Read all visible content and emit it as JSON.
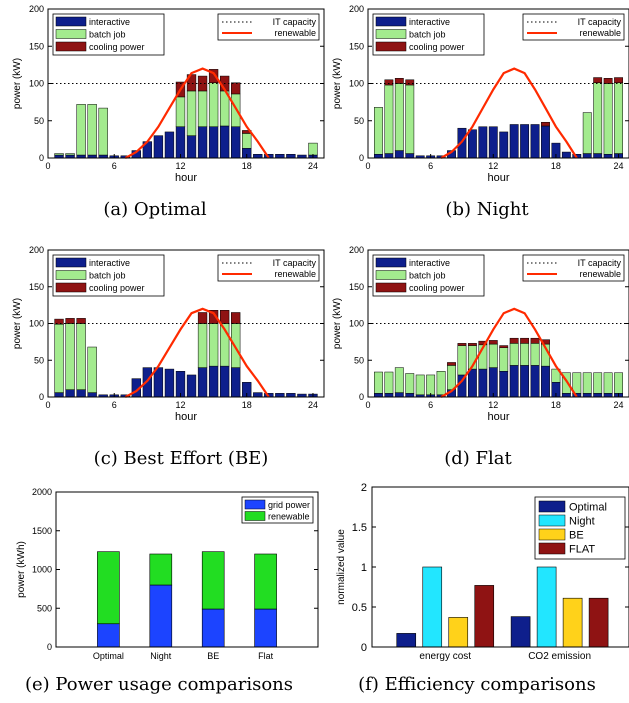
{
  "colors": {
    "interactive": "#0e1f8c",
    "batch": "#a3eb8e",
    "cooling": "#8f1313",
    "renewable": "#ff2a00",
    "grid": "#1c44ff",
    "renewable_bar": "#22dd22",
    "night": "#22e6ff",
    "be": "#ffd21a",
    "flat": "#8f1313"
  },
  "legend": {
    "interactive": "interactive",
    "batch": "batch job",
    "cooling": "cooling power",
    "capacity": "IT capacity",
    "renewable": "renewable",
    "grid_power": "grid power",
    "renewable_e": "renewable",
    "optimal": "Optimal",
    "night": "Night",
    "be": "BE",
    "flat": "FLAT"
  },
  "captions": {
    "a": "(a) Optimal",
    "b": "(b) Night",
    "c": "(c) Best Effort (BE)",
    "d": "(d) Flat",
    "e": "(e) Power usage comparisons",
    "f": "(f) Efficiency comparisons"
  },
  "chart_data": [
    {
      "type": "bar",
      "stacked": true,
      "panel": "a",
      "xlabel": "hour",
      "ylabel": "power (kW)",
      "xlim": [
        0,
        25
      ],
      "ylim": [
        0,
        200
      ],
      "xticks": [
        0,
        6,
        12,
        18,
        24
      ],
      "yticks": [
        0,
        50,
        100,
        150,
        200
      ],
      "it_capacity": 100,
      "hours": [
        1,
        2,
        3,
        4,
        5,
        6,
        7,
        8,
        9,
        10,
        11,
        12,
        13,
        14,
        15,
        16,
        17,
        18,
        19,
        20,
        21,
        22,
        23,
        24
      ],
      "series": [
        {
          "name": "interactive",
          "values": [
            4,
            4,
            4,
            4,
            4,
            3,
            3,
            10,
            22,
            30,
            35,
            42,
            30,
            42,
            42,
            43,
            42,
            13,
            5,
            5,
            5,
            5,
            4,
            4
          ]
        },
        {
          "name": "batch job",
          "values": [
            2,
            2,
            68,
            68,
            63,
            0,
            0,
            0,
            0,
            0,
            0,
            40,
            60,
            48,
            59,
            47,
            44,
            20,
            0,
            0,
            0,
            0,
            0,
            16
          ]
        },
        {
          "name": "cooling power",
          "values": [
            0,
            0,
            0,
            0,
            0,
            0,
            0,
            0,
            0,
            0,
            0,
            20,
            22,
            20,
            18,
            20,
            15,
            4,
            0,
            0,
            0,
            0,
            0,
            0
          ]
        }
      ],
      "renewable": {
        "hours": [
          7,
          8,
          9,
          10,
          11,
          12,
          13,
          14,
          15,
          16,
          17,
          18,
          19,
          20
        ],
        "values": [
          0,
          8,
          22,
          42,
          67,
          92,
          114,
          120,
          114,
          92,
          67,
          42,
          22,
          0
        ]
      }
    },
    {
      "type": "bar",
      "stacked": true,
      "panel": "b",
      "xlabel": "hour",
      "ylabel": "power (kW)",
      "xlim": [
        0,
        25
      ],
      "ylim": [
        0,
        200
      ],
      "xticks": [
        0,
        6,
        12,
        18,
        24
      ],
      "yticks": [
        0,
        50,
        100,
        150,
        200
      ],
      "it_capacity": 100,
      "hours": [
        1,
        2,
        3,
        4,
        5,
        6,
        7,
        8,
        9,
        10,
        11,
        12,
        13,
        14,
        15,
        16,
        17,
        18,
        19,
        20,
        21,
        22,
        23,
        24
      ],
      "series": [
        {
          "name": "interactive",
          "values": [
            5,
            6,
            10,
            6,
            3,
            3,
            3,
            10,
            40,
            38,
            42,
            42,
            35,
            45,
            45,
            45,
            43,
            20,
            8,
            5,
            6,
            6,
            5,
            6
          ]
        },
        {
          "name": "batch job",
          "values": [
            63,
            92,
            90,
            92,
            0,
            0,
            0,
            0,
            0,
            0,
            0,
            0,
            0,
            0,
            0,
            0,
            0,
            0,
            0,
            0,
            55,
            95,
            95,
            95
          ]
        },
        {
          "name": "cooling power",
          "values": [
            0,
            7,
            7,
            7,
            0,
            0,
            0,
            0,
            0,
            0,
            0,
            0,
            0,
            0,
            0,
            0,
            5,
            0,
            0,
            0,
            0,
            7,
            7,
            7
          ]
        }
      ],
      "renewable": {
        "hours": [
          7,
          8,
          9,
          10,
          11,
          12,
          13,
          14,
          15,
          16,
          17,
          18,
          19,
          20
        ],
        "values": [
          0,
          8,
          22,
          42,
          67,
          92,
          114,
          120,
          114,
          92,
          67,
          42,
          22,
          0
        ]
      }
    },
    {
      "type": "bar",
      "stacked": true,
      "panel": "c",
      "xlabel": "hour",
      "ylabel": "power (kW)",
      "xlim": [
        0,
        25
      ],
      "ylim": [
        0,
        200
      ],
      "xticks": [
        0,
        6,
        12,
        18,
        24
      ],
      "yticks": [
        0,
        50,
        100,
        150,
        200
      ],
      "it_capacity": 100,
      "hours": [
        1,
        2,
        3,
        4,
        5,
        6,
        7,
        8,
        9,
        10,
        11,
        12,
        13,
        14,
        15,
        16,
        17,
        18,
        19,
        20,
        21,
        22,
        23,
        24
      ],
      "series": [
        {
          "name": "interactive",
          "values": [
            6,
            10,
            10,
            6,
            3,
            3,
            3,
            25,
            40,
            40,
            38,
            35,
            30,
            40,
            42,
            42,
            40,
            20,
            6,
            5,
            5,
            5,
            4,
            4
          ]
        },
        {
          "name": "batch job",
          "values": [
            93,
            90,
            90,
            62,
            0,
            0,
            0,
            0,
            0,
            0,
            0,
            0,
            0,
            60,
            58,
            58,
            60,
            0,
            0,
            0,
            0,
            0,
            0,
            0
          ]
        },
        {
          "name": "cooling power",
          "values": [
            7,
            7,
            7,
            0,
            0,
            0,
            0,
            0,
            0,
            0,
            0,
            0,
            0,
            15,
            18,
            18,
            15,
            0,
            0,
            0,
            0,
            0,
            0,
            0
          ]
        }
      ],
      "renewable": {
        "hours": [
          7,
          8,
          9,
          10,
          11,
          12,
          13,
          14,
          15,
          16,
          17,
          18,
          19,
          20
        ],
        "values": [
          0,
          8,
          22,
          42,
          67,
          92,
          114,
          120,
          114,
          92,
          67,
          42,
          22,
          0
        ]
      }
    },
    {
      "type": "bar",
      "stacked": true,
      "panel": "d",
      "xlabel": "hour",
      "ylabel": "power (kW)",
      "xlim": [
        0,
        25
      ],
      "ylim": [
        0,
        200
      ],
      "xticks": [
        0,
        6,
        12,
        18,
        24
      ],
      "yticks": [
        0,
        50,
        100,
        150,
        200
      ],
      "it_capacity": 100,
      "hours": [
        1,
        2,
        3,
        4,
        5,
        6,
        7,
        8,
        9,
        10,
        11,
        12,
        13,
        14,
        15,
        16,
        17,
        18,
        19,
        20,
        21,
        22,
        23,
        24
      ],
      "series": [
        {
          "name": "interactive",
          "values": [
            5,
            5,
            6,
            5,
            3,
            3,
            3,
            10,
            30,
            38,
            38,
            40,
            35,
            43,
            43,
            43,
            42,
            20,
            5,
            5,
            5,
            5,
            5,
            5
          ]
        },
        {
          "name": "batch job",
          "values": [
            29,
            29,
            34,
            27,
            27,
            27,
            32,
            33,
            40,
            32,
            33,
            32,
            32,
            30,
            30,
            30,
            30,
            18,
            28,
            28,
            28,
            28,
            28,
            28
          ]
        },
        {
          "name": "cooling power",
          "values": [
            0,
            0,
            0,
            0,
            0,
            0,
            0,
            4,
            3,
            3,
            5,
            5,
            3,
            7,
            7,
            7,
            6,
            0,
            0,
            0,
            0,
            0,
            0,
            0
          ]
        }
      ],
      "renewable": {
        "hours": [
          7,
          8,
          9,
          10,
          11,
          12,
          13,
          14,
          15,
          16,
          17,
          18,
          19,
          20
        ],
        "values": [
          0,
          8,
          22,
          42,
          67,
          92,
          114,
          120,
          114,
          92,
          67,
          42,
          22,
          0
        ]
      }
    },
    {
      "type": "bar",
      "stacked": true,
      "panel": "e",
      "ylabel": "power (kWh)",
      "ylim": [
        0,
        2000
      ],
      "yticks": [
        0,
        500,
        1000,
        1500,
        2000
      ],
      "categories": [
        "Optimal",
        "Night",
        "BE",
        "Flat"
      ],
      "series": [
        {
          "name": "grid power",
          "values": [
            300,
            800,
            490,
            490
          ]
        },
        {
          "name": "renewable",
          "values": [
            930,
            400,
            740,
            710
          ]
        }
      ]
    },
    {
      "type": "bar",
      "grouped": true,
      "panel": "f",
      "ylabel": "normalized value",
      "ylim": [
        0,
        2
      ],
      "yticks": [
        0,
        0.5,
        1,
        1.5,
        2
      ],
      "categories": [
        "energy cost",
        "CO2 emission"
      ],
      "series": [
        {
          "name": "Optimal",
          "values": [
            0.17,
            0.38
          ]
        },
        {
          "name": "Night",
          "values": [
            1.0,
            1.0
          ]
        },
        {
          "name": "BE",
          "values": [
            0.37,
            0.61
          ]
        },
        {
          "name": "FLAT",
          "values": [
            0.77,
            0.61
          ]
        }
      ]
    }
  ]
}
